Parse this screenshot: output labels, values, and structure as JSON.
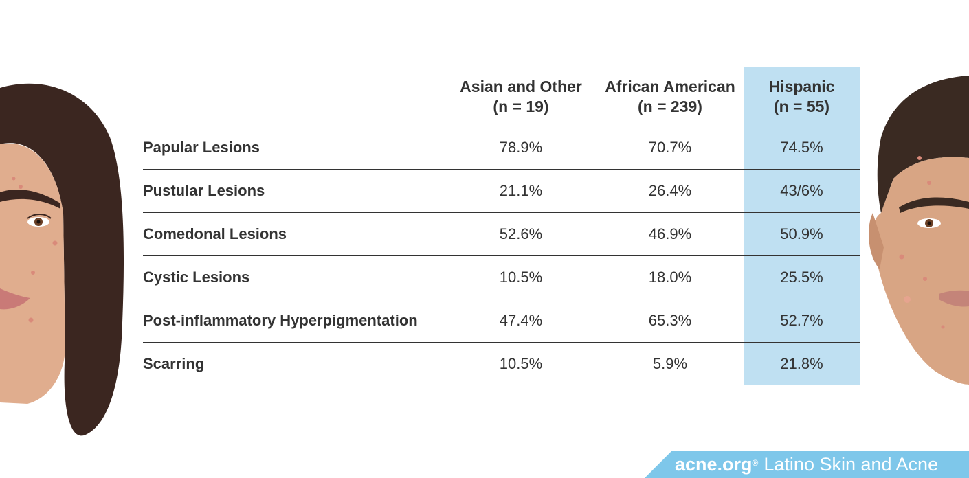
{
  "colors": {
    "highlight_column": "#bfe0f2",
    "banner": "#7ec7ea",
    "text": "#333333",
    "rule": "#333333"
  },
  "chart_data": {
    "type": "table",
    "columns": [
      {
        "label": "Asian and Other",
        "sublabel": "(n = 19)"
      },
      {
        "label": "African American",
        "sublabel": "(n = 239)"
      },
      {
        "label": "Hispanic",
        "sublabel": "(n = 55)",
        "highlighted": true
      }
    ],
    "rows": [
      {
        "label": "Papular Lesions",
        "values": [
          "78.9%",
          "70.7%",
          "74.5%"
        ]
      },
      {
        "label": "Pustular Lesions",
        "values": [
          "21.1%",
          "26.4%",
          "43/6%"
        ]
      },
      {
        "label": "Comedonal Lesions",
        "values": [
          "52.6%",
          "46.9%",
          "50.9%"
        ]
      },
      {
        "label": "Cystic Lesions",
        "values": [
          "10.5%",
          "18.0%",
          "25.5%"
        ]
      },
      {
        "label": "Post-inflammatory Hyperpigmentation",
        "values": [
          "47.4%",
          "65.3%",
          "52.7%"
        ]
      },
      {
        "label": "Scarring",
        "values": [
          "10.5%",
          "5.9%",
          "21.8%"
        ]
      }
    ]
  },
  "illustrations": {
    "left": "woman-face-illustration",
    "right": "man-face-illustration"
  },
  "footer": {
    "brand": "acne.org",
    "brand_mark": "®",
    "tagline": "Latino Skin and Acne"
  }
}
